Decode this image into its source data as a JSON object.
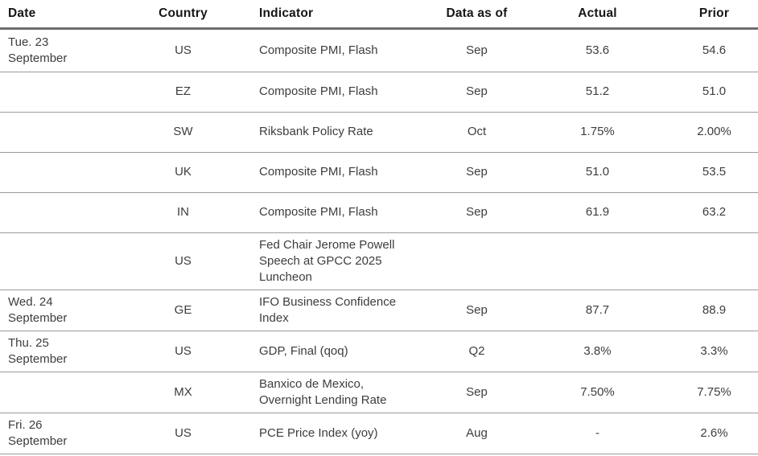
{
  "title": "Economic calendar table",
  "colors": {
    "background": "#ffffff",
    "header_text": "#161616",
    "body_text": "#3d3d3d",
    "header_rule": "#6d6d6d",
    "row_line": "#9b9b9b"
  },
  "table": {
    "columns": {
      "date": "Date",
      "country": "Country",
      "indicator": "Indicator",
      "data_as_of": "Data as of",
      "actual": "Actual",
      "prior": "Prior"
    },
    "rows": [
      {
        "date": "Tue. 23\nSeptember",
        "country": "US",
        "indicator": "Composite PMI, Flash",
        "data_as_of": "Sep",
        "actual": "53.6",
        "prior": "54.6"
      },
      {
        "date": "",
        "country": "EZ",
        "indicator": "Composite PMI, Flash",
        "data_as_of": "Sep",
        "actual": "51.2",
        "prior": "51.0"
      },
      {
        "date": "",
        "country": "SW",
        "indicator": "Riksbank Policy Rate",
        "data_as_of": "Oct",
        "actual": "1.75%",
        "prior": "2.00%"
      },
      {
        "date": "",
        "country": "UK",
        "indicator": "Composite PMI, Flash",
        "data_as_of": "Sep",
        "actual": "51.0",
        "prior": "53.5"
      },
      {
        "date": "",
        "country": "IN",
        "indicator": "Composite PMI, Flash",
        "data_as_of": "Sep",
        "actual": "61.9",
        "prior": "63.2"
      },
      {
        "date": "",
        "country": "US",
        "indicator": "Fed Chair Jerome Powell\nSpeech at GPCC 2025\nLuncheon",
        "data_as_of": "",
        "actual": "",
        "prior": ""
      },
      {
        "date": "Wed. 24\nSeptember",
        "country": "GE",
        "indicator": "IFO Business Confidence\nIndex",
        "data_as_of": "Sep",
        "actual": "87.7",
        "prior": "88.9"
      },
      {
        "date": "Thu. 25\nSeptember",
        "country": "US",
        "indicator": "GDP, Final (qoq)",
        "data_as_of": "Q2",
        "actual": "3.8%",
        "prior": "3.3%"
      },
      {
        "date": "",
        "country": "MX",
        "indicator": "Banxico de Mexico,\nOvernight Lending Rate",
        "data_as_of": "Sep",
        "actual": "7.50%",
        "prior": "7.75%"
      },
      {
        "date": "Fri. 26\nSeptember",
        "country": "US",
        "indicator": "PCE Price Index (yoy)",
        "data_as_of": "Aug",
        "actual": "-",
        "prior": "2.6%"
      }
    ]
  },
  "chart_data": {
    "type": "table",
    "columns": [
      "Date",
      "Country",
      "Indicator",
      "Data as of",
      "Actual",
      "Prior"
    ],
    "rows": [
      [
        "Tue. 23 September",
        "US",
        "Composite PMI, Flash",
        "Sep",
        "53.6",
        "54.6"
      ],
      [
        "",
        "EZ",
        "Composite PMI, Flash",
        "Sep",
        "51.2",
        "51.0"
      ],
      [
        "",
        "SW",
        "Riksbank Policy Rate",
        "Oct",
        "1.75%",
        "2.00%"
      ],
      [
        "",
        "UK",
        "Composite PMI, Flash",
        "Sep",
        "51.0",
        "53.5"
      ],
      [
        "",
        "IN",
        "Composite PMI, Flash",
        "Sep",
        "61.9",
        "63.2"
      ],
      [
        "",
        "US",
        "Fed Chair Jerome Powell Speech at GPCC 2025 Luncheon",
        "",
        "",
        ""
      ],
      [
        "Wed. 24 September",
        "GE",
        "IFO Business Confidence Index",
        "Sep",
        "87.7",
        "88.9"
      ],
      [
        "Thu. 25 September",
        "US",
        "GDP, Final (qoq)",
        "Q2",
        "3.8%",
        "3.3%"
      ],
      [
        "",
        "MX",
        "Banxico de Mexico, Overnight Lending Rate",
        "Sep",
        "7.50%",
        "7.75%"
      ],
      [
        "Fri. 26 September",
        "US",
        "PCE Price Index (yoy)",
        "Aug",
        "-",
        "2.6%"
      ]
    ]
  }
}
